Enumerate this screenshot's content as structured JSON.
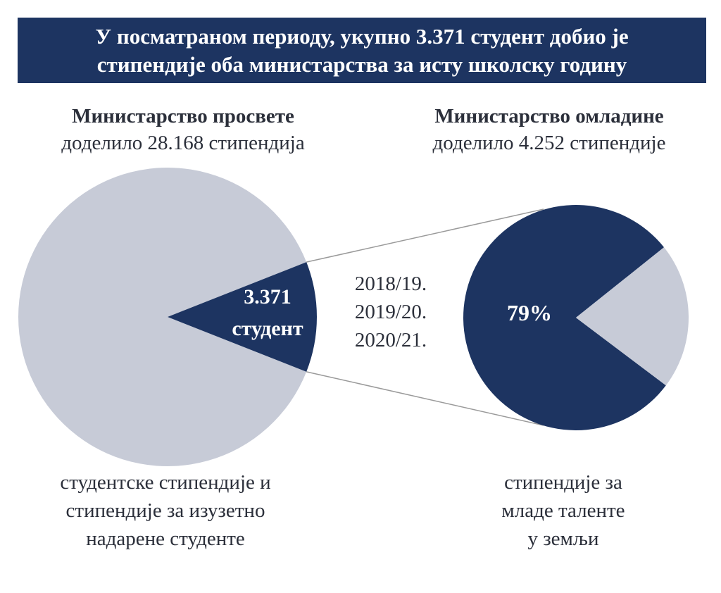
{
  "banner": {
    "line1": "У посматраном периоду, укупно 3.371 студент добио је",
    "line2": "стипендије оба министарства за исту школску годину"
  },
  "left": {
    "title": "Министарство просвете",
    "subtitle": "доделило 28.168 стипендија",
    "caption_line1": "студентске стипендије и",
    "caption_line2": "стипендије за изузетно",
    "caption_line3": "надарене студенте"
  },
  "right": {
    "title": "Министарство омладине",
    "subtitle": "доделило 4.252 стипендије",
    "caption_line1": "стипендије за",
    "caption_line2": "младе таленте",
    "caption_line3": "у земљи"
  },
  "years": [
    "2018/19.",
    "2019/20.",
    "2020/21."
  ],
  "colors": {
    "navy": "#1d3461",
    "light": "#c7cbd7",
    "connector": "#9a9a9a"
  },
  "chart_data": [
    {
      "type": "pie",
      "title": "Министарство просвете",
      "total": 28168,
      "slices": [
        {
          "name": "",
          "value": 24797,
          "color": "#c7cbd7"
        },
        {
          "name": "3.371 студент",
          "value": 3371,
          "color": "#1d3461"
        }
      ],
      "highlight_label_line1": "3.371",
      "highlight_label_line2": "студент"
    },
    {
      "type": "pie",
      "title": "Министарство омладине",
      "total": 4252,
      "slices": [
        {
          "name": "79%",
          "value": 79,
          "color": "#1d3461"
        },
        {
          "name": "",
          "value": 21,
          "color": "#c7cbd7"
        }
      ],
      "highlight_label": "79%"
    }
  ]
}
